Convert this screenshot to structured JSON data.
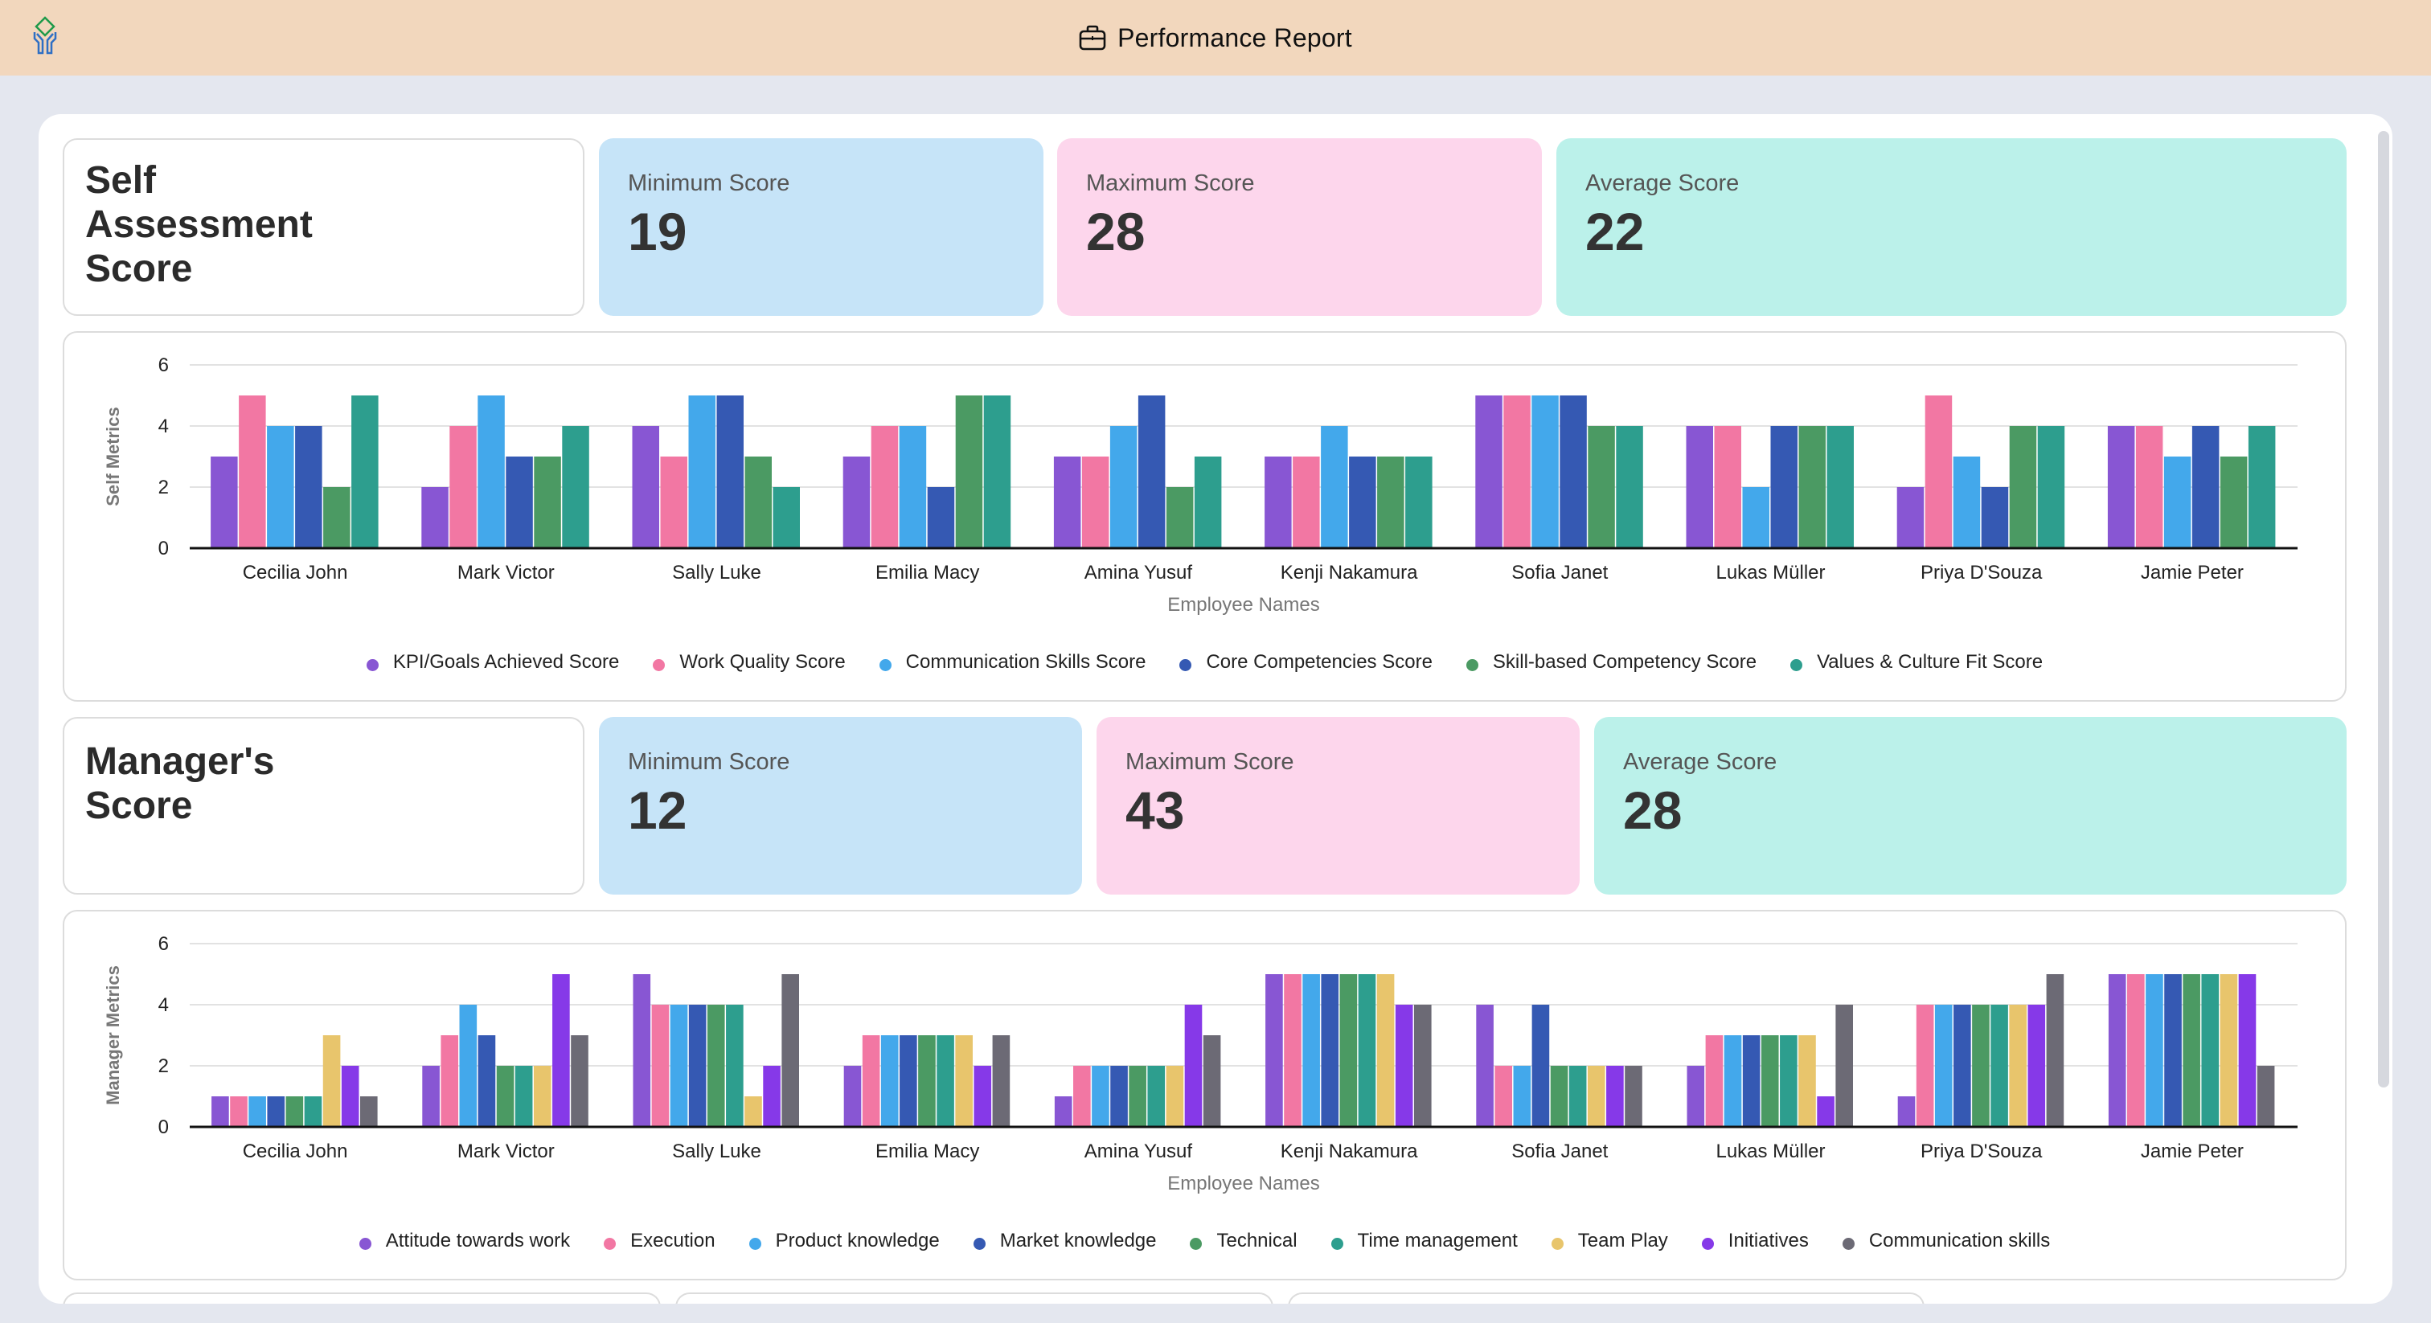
{
  "app": {
    "title": "Performance Report",
    "logo_icon": "logo-icon",
    "title_icon": "briefcase-icon"
  },
  "self_section": {
    "title": "Self Assessment Score",
    "title_lines": [
      "Self",
      "Assessment",
      "Score"
    ],
    "stats": [
      {
        "label": "Minimum Score",
        "value": "19",
        "color": "#c6e4f8"
      },
      {
        "label": "Maximum Score",
        "value": "28",
        "color": "#fdd6ec"
      },
      {
        "label": "Average Score",
        "value": "22",
        "color": "#bbf1ea"
      }
    ]
  },
  "manager_section": {
    "title": "Manager's Score",
    "title_lines": [
      "Manager's",
      "Score"
    ],
    "stats": [
      {
        "label": "Minimum Score",
        "value": "12",
        "color": "#c6e4f8"
      },
      {
        "label": "Maximum Score",
        "value": "43",
        "color": "#fdd6ec"
      },
      {
        "label": "Average Score",
        "value": "28",
        "color": "#bbf1ea"
      }
    ]
  },
  "chart_data": [
    {
      "type": "bar",
      "title": "",
      "xlabel": "Employee Names",
      "ylabel": "Self Metrics",
      "ylim": [
        0,
        6
      ],
      "yticks": [
        0,
        2,
        4,
        6
      ],
      "grid": true,
      "legend_position": "bottom",
      "categories": [
        "Cecilia John",
        "Mark Victor",
        "Sally Luke",
        "Emilia Macy",
        "Amina Yusuf",
        "Kenji Nakamura",
        "Sofia Janet",
        "Lukas Müller",
        "Priya D'Souza",
        "Jamie Peter"
      ],
      "series": [
        {
          "name": "KPI/Goals Achieved Score",
          "color": "#8856d3",
          "values": [
            3,
            2,
            4,
            3,
            3,
            3,
            5,
            4,
            2,
            4
          ]
        },
        {
          "name": "Work Quality Score",
          "color": "#f277a3",
          "values": [
            5,
            4,
            3,
            4,
            3,
            3,
            5,
            4,
            5,
            4
          ]
        },
        {
          "name": "Communication Skills Score",
          "color": "#43a8eb",
          "values": [
            4,
            5,
            5,
            4,
            4,
            4,
            5,
            2,
            3,
            3
          ]
        },
        {
          "name": "Core Competencies Score",
          "color": "#3559b3",
          "values": [
            4,
            3,
            5,
            2,
            5,
            3,
            5,
            4,
            2,
            4
          ]
        },
        {
          "name": "Skill-based Competency Score",
          "color": "#4b9a63",
          "values": [
            2,
            3,
            3,
            5,
            2,
            3,
            4,
            4,
            4,
            3
          ]
        },
        {
          "name": "Values & Culture Fit Score",
          "color": "#2d9e8e",
          "values": [
            5,
            4,
            2,
            5,
            3,
            3,
            4,
            4,
            4,
            4
          ]
        }
      ]
    },
    {
      "type": "bar",
      "title": "",
      "xlabel": "Employee Names",
      "ylabel": "Manager Metrics",
      "ylim": [
        0,
        6
      ],
      "yticks": [
        0,
        2,
        4,
        6
      ],
      "grid": true,
      "legend_position": "bottom",
      "categories": [
        "Cecilia John",
        "Mark Victor",
        "Sally Luke",
        "Emilia Macy",
        "Amina Yusuf",
        "Kenji Nakamura",
        "Sofia Janet",
        "Lukas Müller",
        "Priya D'Souza",
        "Jamie Peter"
      ],
      "series": [
        {
          "name": "Attitude towards work",
          "color": "#8856d3",
          "values": [
            1,
            2,
            5,
            2,
            1,
            5,
            4,
            2,
            1,
            5
          ]
        },
        {
          "name": "Execution",
          "color": "#f277a3",
          "values": [
            1,
            3,
            4,
            3,
            2,
            5,
            2,
            3,
            4,
            5
          ]
        },
        {
          "name": "Product knowledge",
          "color": "#43a8eb",
          "values": [
            1,
            4,
            4,
            3,
            2,
            5,
            2,
            3,
            4,
            5
          ]
        },
        {
          "name": "Market knowledge",
          "color": "#3559b3",
          "values": [
            1,
            3,
            4,
            3,
            2,
            5,
            4,
            3,
            4,
            5
          ]
        },
        {
          "name": "Technical",
          "color": "#4b9a63",
          "values": [
            1,
            2,
            4,
            3,
            2,
            5,
            2,
            3,
            4,
            5
          ]
        },
        {
          "name": "Time management",
          "color": "#2d9e8e",
          "values": [
            1,
            2,
            4,
            3,
            2,
            5,
            2,
            3,
            4,
            5
          ]
        },
        {
          "name": "Team Play",
          "color": "#e8c56c",
          "values": [
            3,
            2,
            1,
            3,
            2,
            5,
            2,
            3,
            4,
            5
          ]
        },
        {
          "name": "Initiatives",
          "color": "#8639e8",
          "values": [
            2,
            5,
            2,
            2,
            4,
            4,
            2,
            1,
            4,
            5
          ]
        },
        {
          "name": "Communication skills",
          "color": "#6c6a75",
          "values": [
            1,
            3,
            5,
            3,
            3,
            4,
            2,
            4,
            5,
            2
          ]
        }
      ]
    }
  ]
}
